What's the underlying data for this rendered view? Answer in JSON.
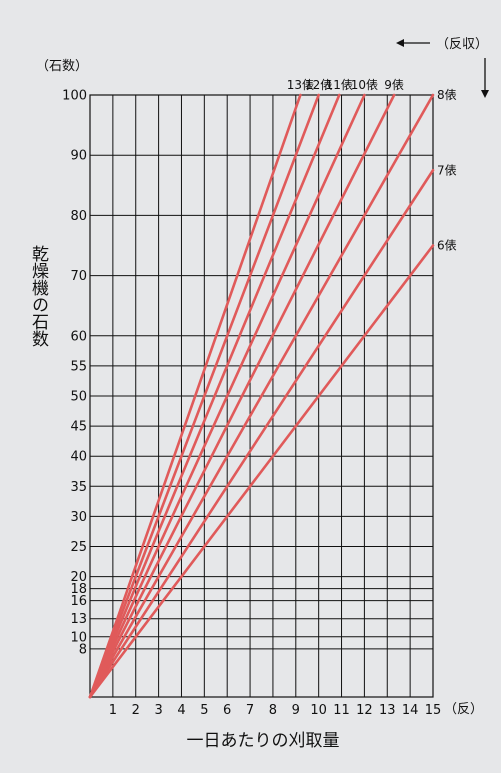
{
  "chart_data": {
    "type": "line",
    "ylabel": "乾燥機の石数",
    "y_unit": "（石数）",
    "xlabel": "一日あたりの刈取量",
    "x_unit": "（反）",
    "x_direction_label": "（反収）",
    "x_ticks": [
      "1",
      "2",
      "3",
      "4",
      "5",
      "6",
      "7",
      "8",
      "9",
      "10",
      "11",
      "12",
      "13",
      "14",
      "15"
    ],
    "y_ticks": [
      "100",
      "90",
      "80",
      "70",
      "60",
      "55",
      "50",
      "45",
      "40",
      "35",
      "30",
      "25",
      "20",
      "18",
      "16",
      "13",
      "10",
      "8"
    ],
    "xlim": [
      0,
      15
    ],
    "ylim": [
      0,
      100
    ],
    "grid": true,
    "series": [
      {
        "name": "6俵",
        "x": [
          0,
          15
        ],
        "y": [
          0,
          75
        ]
      },
      {
        "name": "7俵",
        "x": [
          0,
          15
        ],
        "y": [
          0,
          87.5
        ]
      },
      {
        "name": "8俵",
        "x": [
          0,
          15
        ],
        "y": [
          0,
          100
        ]
      },
      {
        "name": "9俵",
        "x": [
          0,
          13.3
        ],
        "y": [
          0,
          100
        ]
      },
      {
        "name": "10俵",
        "x": [
          0,
          12
        ],
        "y": [
          0,
          100
        ]
      },
      {
        "name": "11俵",
        "x": [
          0,
          10.9
        ],
        "y": [
          0,
          100
        ]
      },
      {
        "name": "12俵",
        "x": [
          0,
          10
        ],
        "y": [
          0,
          100
        ]
      },
      {
        "name": "13俵",
        "x": [
          0,
          9.2
        ],
        "y": [
          0,
          100
        ]
      }
    ],
    "colors": {
      "line": "#e05a5a",
      "grid": "#111111",
      "background": "#e6e7e9"
    }
  }
}
